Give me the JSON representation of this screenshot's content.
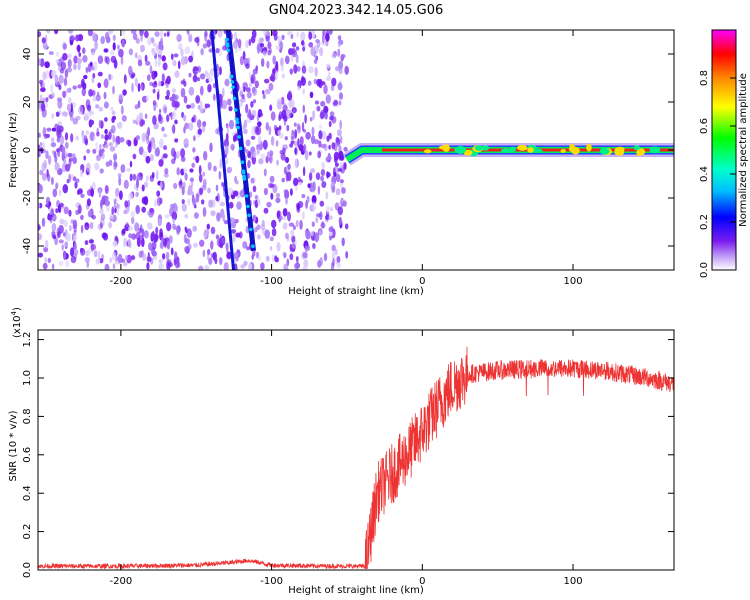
{
  "title": "GN04.2023.342.14.05.G06",
  "chart_data": [
    {
      "type": "heatmap",
      "xlabel": "Height of straight line (km)",
      "ylabel": "Frequency (Hz)",
      "xlim": [
        -255,
        167
      ],
      "ylim": [
        -50,
        50
      ],
      "x_ticks": [
        -200,
        -100,
        0,
        100
      ],
      "y_ticks": [
        -40,
        -20,
        0,
        20,
        40
      ],
      "colorbar": {
        "label": "Normalized spectral amplitude",
        "range": [
          0,
          1
        ],
        "ticks": [
          "0.0",
          "0.2",
          "0.4",
          "0.6",
          "0.8"
        ],
        "tick_values": [
          0,
          0.2,
          0.4,
          0.6,
          0.8
        ]
      },
      "noise_region_x": [
        -255,
        -50
      ],
      "diagonal_trace": {
        "points": [
          [
            -130,
            48
          ],
          [
            -112,
            -42
          ]
        ]
      },
      "signal_band": {
        "x_start": -50,
        "x_end": 167,
        "start_offset_hz": -4,
        "settled_x": -40,
        "frequency_hz": 0
      }
    },
    {
      "type": "line",
      "xlabel": "Height of straight line (km)",
      "ylabel": "SNR (10 * v/v)",
      "y_multiplier": "(x10",
      "y_multiplier_exp": "4",
      "y_multiplier_close": ")",
      "xlim": [
        -255,
        167
      ],
      "ylim": [
        0,
        1.25
      ],
      "x_ticks": [
        -200,
        -100,
        0,
        100
      ],
      "y_ticks": [
        "0.0",
        "0.2",
        "0.4",
        "0.6",
        "0.8",
        "1.0",
        "1.2"
      ],
      "y_tick_values": [
        0,
        0.2,
        0.4,
        0.6,
        0.8,
        1.0,
        1.2
      ],
      "color": "#ee3333",
      "profile": [
        [
          -255,
          0.02
        ],
        [
          -200,
          0.02
        ],
        [
          -150,
          0.025
        ],
        [
          -125,
          0.04
        ],
        [
          -115,
          0.05
        ],
        [
          -100,
          0.025
        ],
        [
          -60,
          0.02
        ],
        [
          -38,
          0.02
        ],
        [
          -35,
          0.15
        ],
        [
          -30,
          0.4
        ],
        [
          -20,
          0.5
        ],
        [
          -10,
          0.6
        ],
        [
          0,
          0.72
        ],
        [
          10,
          0.85
        ],
        [
          20,
          0.96
        ],
        [
          30,
          1.02
        ],
        [
          50,
          1.04
        ],
        [
          80,
          1.05
        ],
        [
          100,
          1.05
        ],
        [
          120,
          1.04
        ],
        [
          150,
          1.0
        ],
        [
          167,
          0.97
        ]
      ]
    }
  ]
}
